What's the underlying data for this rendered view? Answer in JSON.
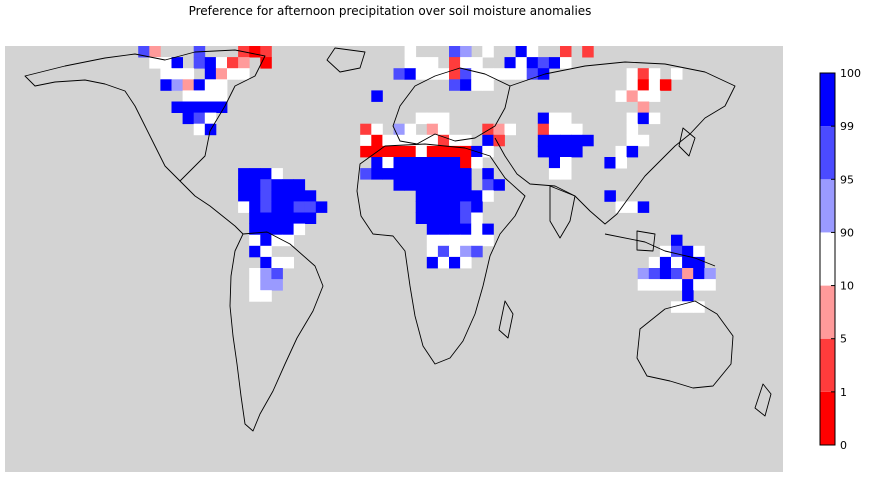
{
  "title": "Preference for afternoon precipitation over soil moisture anomalies",
  "colors": {
    "ocean": "#d3d3d3",
    "land_outline": "#000000",
    "bins": [
      "#ff0000",
      "#ff3c3c",
      "#ff9a9a",
      "#ffffff",
      "#9a9aff",
      "#4b4bff",
      "#0000ff"
    ]
  },
  "colorbar": {
    "tick_labels": [
      "0",
      "1",
      "5",
      "10",
      "90",
      "95",
      "99",
      "100"
    ]
  },
  "legend_placement": "right"
}
